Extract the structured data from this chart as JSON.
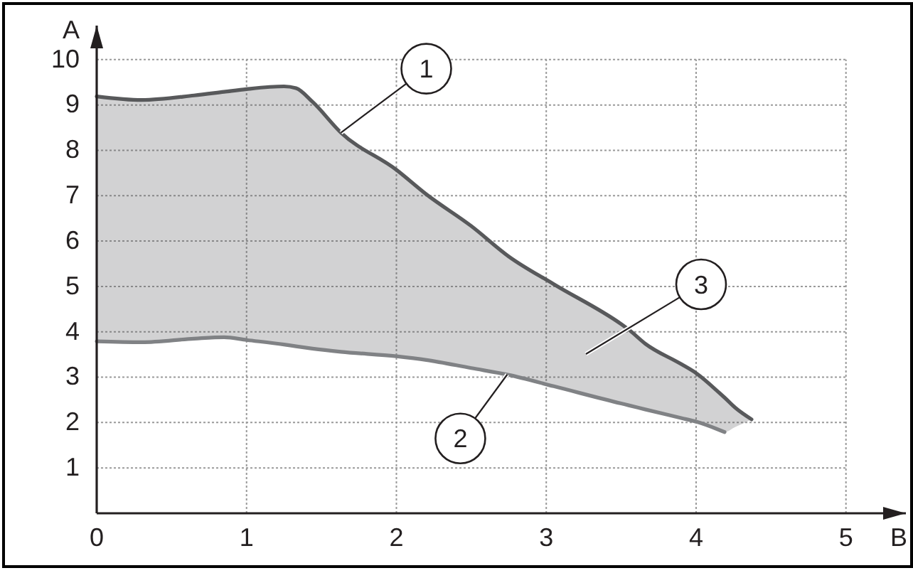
{
  "chart_data": {
    "type": "line",
    "xlabel": "B",
    "ylabel": "A",
    "x": [
      0,
      0.3,
      0.65,
      0.85,
      1.0,
      1.25,
      1.33,
      1.44,
      1.63,
      2.0,
      2.2,
      2.5,
      2.75,
      3.05,
      3.5,
      3.55,
      3.66,
      3.9,
      4.0,
      4.16,
      4.19,
      4.26,
      4.37
    ],
    "series": [
      {
        "color": "#58595b",
        "values": [
          9.19,
          9.11,
          9.21,
          9.29,
          9.35,
          9.41,
          9.37,
          9.07,
          8.39,
          7.57,
          7.03,
          6.33,
          5.66,
          5.05,
          4.17,
          4.05,
          3.74,
          3.29,
          3.09,
          2.64,
          2.55,
          2.33,
          2.07
        ],
        "lower": [
          3.79,
          3.77,
          3.85,
          3.88,
          3.82,
          3.72,
          3.68,
          3.63,
          3.56,
          3.46,
          3.38,
          3.2,
          3.05,
          2.8,
          2.42,
          2.38,
          2.29,
          2.1,
          2.02,
          1.83,
          1.79,
          1.9,
          2.07
        ],
        "upper": [
          9.19,
          9.11,
          9.21,
          9.29,
          9.35,
          9.41,
          9.37,
          9.07,
          8.39,
          7.57,
          7.03,
          6.33,
          5.66,
          5.05,
          4.17,
          4.05,
          3.74,
          3.29,
          3.09,
          2.64,
          2.55,
          2.33,
          2.07
        ]
      },
      {
        "color": "#808285",
        "values": [
          3.79,
          3.77,
          3.85,
          3.88,
          3.82,
          3.72,
          3.68,
          3.63,
          3.56,
          3.46,
          3.38,
          3.2,
          3.05,
          2.8,
          2.42,
          2.38,
          2.29,
          2.1,
          2.02,
          1.83,
          1.79,
          null,
          null
        ]
      }
    ],
    "xlim": [
      0,
      5.4
    ],
    "ylim": [
      0,
      10.75
    ],
    "xticks": [
      0,
      1,
      2,
      3,
      4,
      5
    ],
    "yticks": [
      1,
      2,
      3,
      4,
      5,
      6,
      7,
      8,
      9,
      10
    ],
    "grid": true,
    "annotations": [
      {
        "text": "1",
        "x": 1.63,
        "y": 8.39
      },
      {
        "text": "2",
        "x": 2.74,
        "y": 3.06
      },
      "3"
    ]
  }
}
